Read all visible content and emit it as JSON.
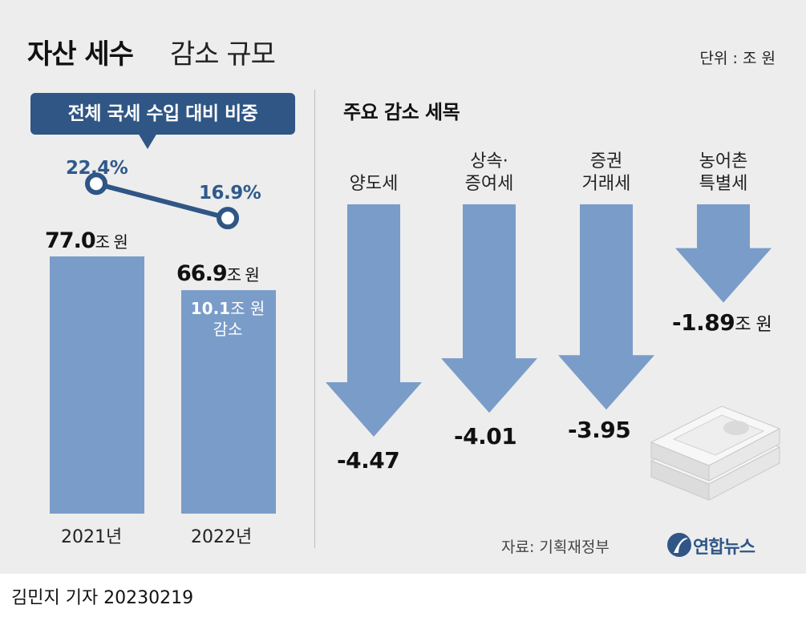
{
  "header": {
    "title_bold": "자산 세수",
    "title_light": "감소 규모",
    "unit": "단위 : 조 원"
  },
  "left_panel": {
    "callout": "전체 국세 수입 대비 비중",
    "decrease_value": "10.1",
    "decrease_unit": "조 원",
    "decrease_label": "감소"
  },
  "right_panel": {
    "title": "주요 감소 세목",
    "value_unit": "조 원"
  },
  "footer": {
    "source": "자료: 기획재정부",
    "logo_text": "연합뉴스",
    "byline": "김민지 기자  20230219"
  },
  "colors": {
    "bar": "#7a9cc9",
    "navy": "#2f5685",
    "accent_text": "#2f5a8c",
    "panel_bg": "#ededed"
  },
  "chart_data": [
    {
      "type": "bar",
      "title": "",
      "categories": [
        "2021년",
        "2022년"
      ],
      "values": [
        77.0,
        66.9
      ],
      "value_labels": [
        "77.0",
        "66.9"
      ],
      "value_unit": "조 원",
      "ylim": [
        0,
        77.0
      ],
      "line_series": {
        "name": "전체 국세 수입 대비 비중",
        "values": [
          22.4,
          16.9
        ],
        "labels": [
          "22.4%",
          "16.9%"
        ]
      }
    },
    {
      "type": "bar",
      "title": "주요 감소 세목",
      "categories": [
        "양도세",
        "상속·\n증여세",
        "증권\n거래세",
        "농어촌\n특별세"
      ],
      "values": [
        -4.47,
        -4.01,
        -3.95,
        -1.89
      ],
      "value_labels": [
        "-4.47",
        "-4.01",
        "-3.95",
        "-1.89"
      ],
      "ylim": [
        -4.47,
        0
      ]
    }
  ]
}
